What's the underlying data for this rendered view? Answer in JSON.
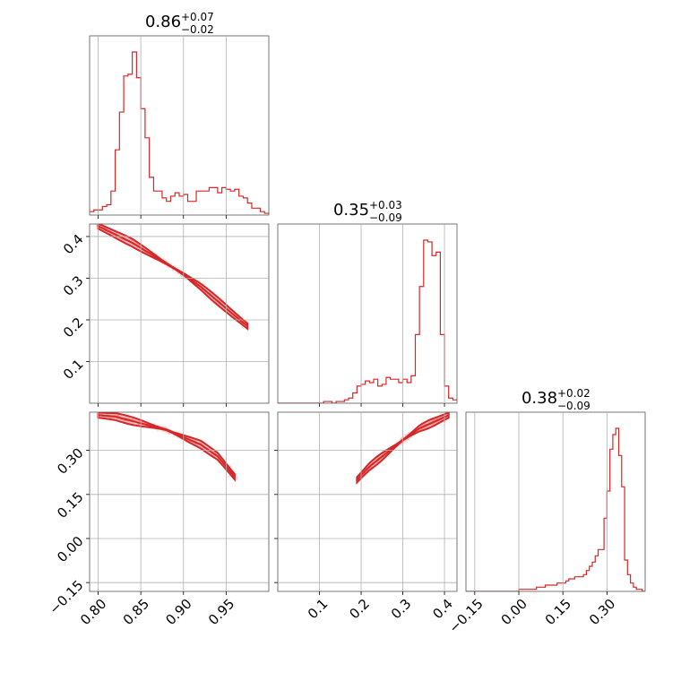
{
  "chart_data": {
    "type": "corner",
    "color": "#d62728",
    "grid": true,
    "parameters": [
      {
        "title": {
          "median": "0.86",
          "plus": "+0.07",
          "minus": "−0.02"
        },
        "range": [
          0.79,
          1.0
        ],
        "ticks": [
          "0.80",
          "0.85",
          "0.90",
          "0.95"
        ],
        "tick_values": [
          0.8,
          0.85,
          0.9,
          0.95
        ],
        "hist": {
          "edges_start": 0.79,
          "edges_step": 0.005,
          "counts": [
            2,
            3,
            3,
            5,
            6,
            14,
            38,
            60,
            81,
            82,
            95,
            80,
            62,
            45,
            22,
            14,
            14,
            10,
            8,
            11,
            13,
            11,
            12,
            8,
            8,
            14,
            14,
            14,
            16,
            16,
            13,
            16,
            15,
            14,
            15,
            11,
            10,
            7,
            4,
            4,
            2,
            1
          ]
        }
      },
      {
        "title": {
          "median": "0.35",
          "plus": "+0.03",
          "minus": "−0.09"
        },
        "range": [
          0.0,
          0.43
        ],
        "ticks": [
          "0.1",
          "0.2",
          "0.3",
          "0.4"
        ],
        "tick_values": [
          0.1,
          0.2,
          0.3,
          0.4
        ],
        "hist": {
          "edges_start": 0.0,
          "edges_step": 0.01,
          "counts": [
            0,
            0,
            0,
            0,
            0,
            0,
            0,
            0,
            0,
            0,
            0,
            1,
            1,
            0,
            1,
            1,
            2,
            3,
            6,
            10,
            11,
            13,
            12,
            14,
            10,
            11,
            15,
            14,
            14,
            12,
            14,
            12,
            16,
            40,
            68,
            95,
            94,
            86,
            88,
            40,
            10,
            3,
            2
          ]
        }
      },
      {
        "title": {
          "median": "0.38",
          "plus": "+0.02",
          "minus": "−0.09"
        },
        "range": [
          -0.18,
          0.43
        ],
        "ticks": [
          "−0.15",
          "0.00",
          "0.15",
          "0.30"
        ],
        "tick_values": [
          -0.15,
          0.0,
          0.15,
          0.3
        ],
        "hist": {
          "edges_start": -0.18,
          "edges_step": 0.01,
          "counts": [
            0,
            0,
            0,
            0,
            0,
            0,
            0,
            0,
            0,
            0,
            0,
            0,
            0,
            0,
            0,
            0,
            0,
            0,
            1,
            1,
            1,
            1,
            1,
            1,
            2,
            2,
            2,
            3,
            3,
            3,
            3,
            4,
            4,
            4,
            5,
            6,
            6,
            7,
            7,
            7,
            8,
            10,
            12,
            14,
            17,
            20,
            20,
            35,
            48,
            68,
            75,
            78,
            65,
            50,
            15,
            8,
            4,
            2,
            1,
            1,
            0
          ]
        }
      }
    ],
    "pairs": [
      {
        "x": 0,
        "y": 1,
        "ridge": [
          [
            0.8,
            0.425
          ],
          [
            0.82,
            0.405
          ],
          [
            0.84,
            0.385
          ],
          [
            0.86,
            0.36
          ],
          [
            0.88,
            0.335
          ],
          [
            0.9,
            0.31
          ],
          [
            0.92,
            0.28
          ],
          [
            0.94,
            0.245
          ],
          [
            0.96,
            0.21
          ],
          [
            0.975,
            0.185
          ]
        ],
        "cloud_extent": [
          0.8,
          0.99
        ]
      },
      {
        "x": 0,
        "y": 2,
        "ridge": [
          [
            0.8,
            0.42
          ],
          [
            0.82,
            0.415
          ],
          [
            0.84,
            0.4
          ],
          [
            0.86,
            0.385
          ],
          [
            0.88,
            0.37
          ],
          [
            0.9,
            0.345
          ],
          [
            0.92,
            0.32
          ],
          [
            0.94,
            0.28
          ],
          [
            0.96,
            0.21
          ]
        ],
        "cloud_extent": [
          0.8,
          0.995
        ]
      },
      {
        "x": 1,
        "y": 2,
        "ridge": [
          [
            0.19,
            0.2
          ],
          [
            0.22,
            0.245
          ],
          [
            0.26,
            0.29
          ],
          [
            0.3,
            0.335
          ],
          [
            0.34,
            0.375
          ],
          [
            0.38,
            0.4
          ],
          [
            0.41,
            0.42
          ]
        ],
        "cloud_extent": [
          0.05,
          0.42
        ]
      }
    ]
  }
}
